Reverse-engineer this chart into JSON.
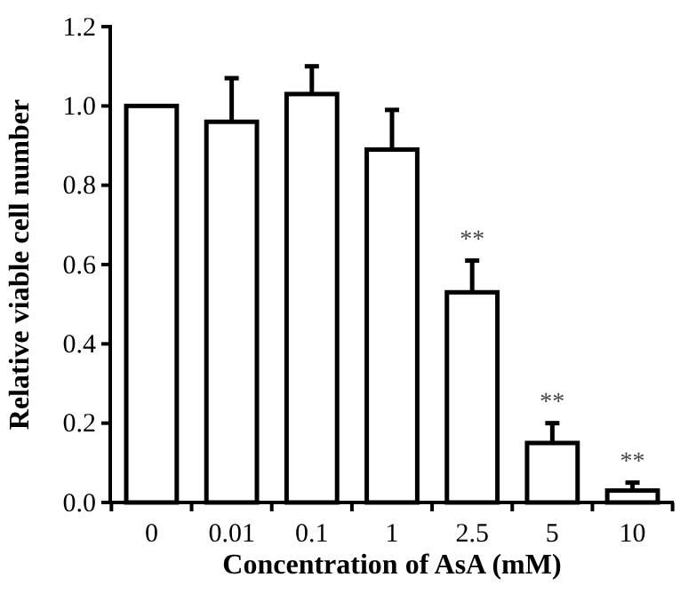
{
  "chart_data": {
    "type": "bar",
    "xlabel": "Concentration of AsA (mM)",
    "ylabel": "Relative viable cell number",
    "categories": [
      "0",
      "0.01",
      "0.1",
      "1",
      "2.5",
      "5",
      "10"
    ],
    "values": [
      1.0,
      0.96,
      1.03,
      0.89,
      0.53,
      0.15,
      0.03
    ],
    "errors": [
      null,
      [
        0.96,
        1.07
      ],
      [
        1.03,
        1.1
      ],
      [
        0.89,
        0.99
      ],
      [
        0.53,
        0.61
      ],
      [
        0.15,
        0.2
      ],
      [
        0.03,
        0.05
      ]
    ],
    "color": "#ffffff",
    "ylim": [
      0,
      1.2
    ],
    "yticks": [
      {
        "value": 0,
        "label": "0.0"
      },
      0.2,
      0.4,
      0.6,
      0.8,
      {
        "value": 1,
        "label": "1.0"
      },
      1.2
    ],
    "annotations": [
      {
        "text": "**",
        "x": "2.5",
        "y": 0.61
      },
      {
        "text": "**",
        "x": "5",
        "y": 0.2
      },
      {
        "text": "**",
        "x": "10",
        "y": 0.05
      }
    ],
    "grid": false
  }
}
